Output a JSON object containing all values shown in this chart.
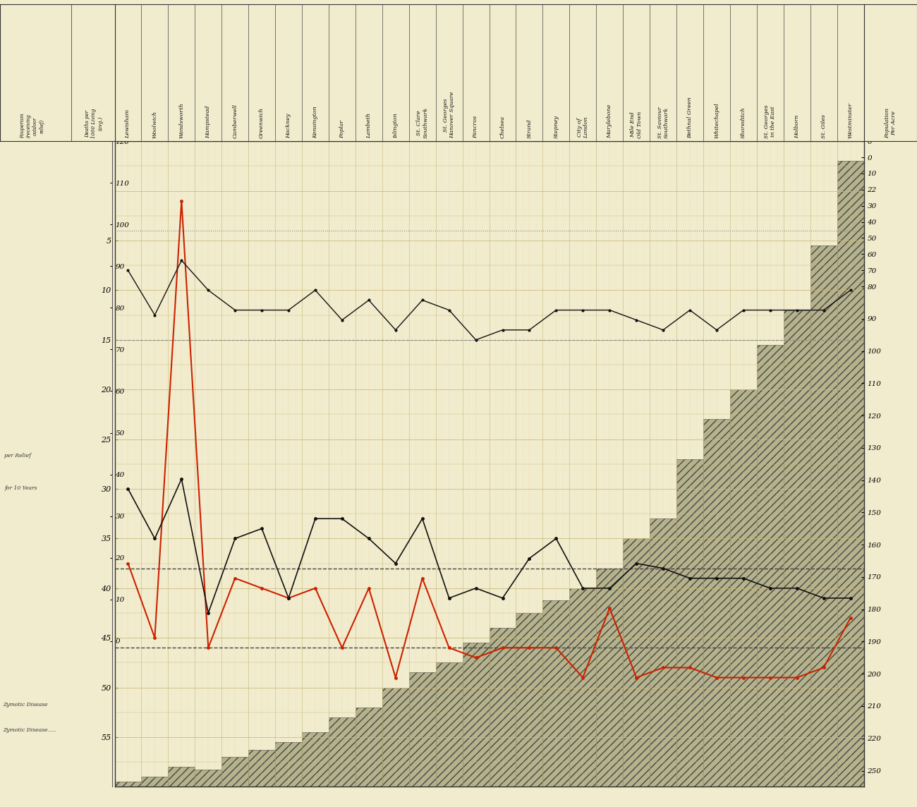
{
  "background_color": "#f2ecce",
  "grid_color": "#c8b878",
  "grid_minor_color": "#ddd0a0",
  "bar_facecolor": "#aaa882",
  "bar_edgecolor": "#333333",
  "n": 28,
  "districts": [
    "Lewisham",
    "Woolwich",
    "Wandsworth",
    "Hampstead",
    "Camberwell",
    "Greenwich",
    "Hackney",
    "Kensington",
    "Poplar",
    "Lambeth",
    "Islington",
    "St. Clare\nSouthwark",
    "St. Georges\nHanover Square",
    "Pancros",
    "Chelsea",
    "Strand",
    "Stepney",
    "City of\nLondon",
    "Marylebone",
    "Mile End\nOld Town",
    "St. Saviour\nSouthwark",
    "Bethnal Green",
    "Whitechapel",
    "Shoreditch",
    "St. Georges\nin the East",
    "Holborn",
    "St. Giles",
    "Westminster"
  ],
  "pop_density": [
    2,
    4,
    8,
    7,
    12,
    15,
    18,
    22,
    28,
    32,
    40,
    46,
    50,
    58,
    64,
    70,
    75,
    80,
    88,
    100,
    108,
    132,
    148,
    160,
    178,
    192,
    218,
    252
  ],
  "death_rate_all_red": [
    45,
    30,
    118,
    28,
    42,
    40,
    38,
    40,
    28,
    40,
    22,
    42,
    28,
    26,
    28,
    28,
    28,
    22,
    36,
    22,
    24,
    24,
    22,
    22,
    22,
    22,
    24,
    34
  ],
  "death_rate_all_black": [
    60,
    50,
    62,
    35,
    50,
    52,
    38,
    54,
    54,
    50,
    45,
    54,
    38,
    40,
    38,
    46,
    50,
    40,
    40,
    45,
    44,
    42,
    42,
    42,
    40,
    40,
    38,
    38
  ],
  "death_rate_zymotic_black": [
    104,
    95,
    106,
    100,
    96,
    96,
    96,
    100,
    94,
    98,
    92,
    98,
    96,
    90,
    92,
    92,
    96,
    96,
    96,
    94,
    92,
    96,
    92,
    96,
    96,
    96,
    96,
    100
  ],
  "avg_death_all_red": 28,
  "avg_death_all_black": 44,
  "avg_zymotic_1": 90,
  "avg_zymotic_2": 112,
  "red_line_color": "#cc2200",
  "black_line_color": "#111111",
  "dashed_color": "#444444",
  "dotted_color": "#888888",
  "y_min": 0,
  "y_max": 130,
  "left_death_ticks_vals": [
    55,
    50,
    45,
    40,
    35,
    30,
    25,
    20,
    15,
    10,
    5
  ],
  "left_death_ticks_y": [
    10,
    20,
    30,
    40,
    50,
    60,
    70,
    80,
    90,
    100,
    110
  ],
  "paup_ticks_vals": [
    0,
    10,
    20,
    30,
    40,
    50,
    60,
    70,
    80,
    90,
    100,
    110,
    120
  ],
  "paup_ticks_y": [
    35,
    45,
    55,
    65,
    75,
    85,
    95,
    105,
    115,
    125,
    135,
    145,
    155
  ],
  "right_axis_ticks_y": [
    5,
    15,
    25,
    35,
    45,
    55,
    65,
    75,
    85,
    95,
    105,
    115,
    125
  ],
  "right_axis_ticks_vals": [
    250,
    220,
    210,
    200,
    190,
    180,
    170,
    160,
    150,
    140,
    130,
    120,
    110
  ],
  "right_axis_ticks2_y": [
    125,
    135,
    145,
    155,
    160,
    165,
    170,
    175,
    180,
    185,
    190,
    195,
    200
  ],
  "right_axis_ticks2_vals": [
    110,
    100,
    90,
    80,
    70,
    60,
    50,
    40,
    30,
    22,
    10,
    0,
    0
  ]
}
